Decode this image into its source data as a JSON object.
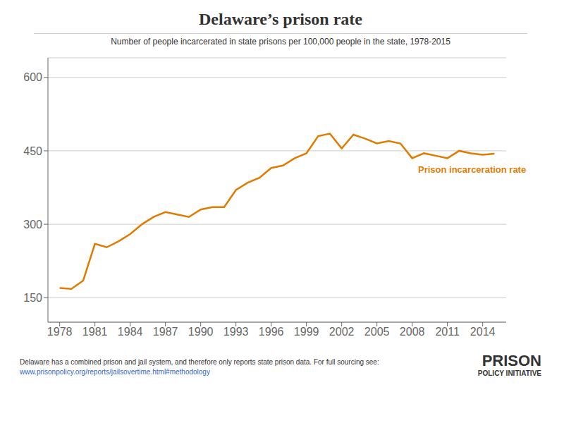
{
  "chart_data": {
    "type": "line",
    "title": "Delaware’s prison rate",
    "subtitle": "Number of people incarcerated in state prisons per 100,000 people in the state, 1978-2015",
    "x": [
      1978,
      1979,
      1980,
      1981,
      1982,
      1983,
      1984,
      1985,
      1986,
      1987,
      1988,
      1989,
      1990,
      1991,
      1992,
      1993,
      1994,
      1995,
      1996,
      1997,
      1998,
      1999,
      2000,
      2001,
      2002,
      2003,
      2004,
      2005,
      2006,
      2007,
      2008,
      2009,
      2010,
      2011,
      2012,
      2013,
      2014,
      2015
    ],
    "values": [
      170,
      168,
      185,
      260,
      253,
      265,
      280,
      300,
      315,
      325,
      320,
      315,
      330,
      335,
      335,
      370,
      385,
      395,
      415,
      420,
      435,
      445,
      480,
      485,
      455,
      483,
      475,
      465,
      470,
      465,
      435,
      445,
      440,
      435,
      450,
      445,
      442,
      444
    ],
    "color": "#e07b00",
    "xlim": [
      1977,
      2016
    ],
    "xticks": [
      1978,
      1981,
      1984,
      1987,
      1990,
      1993,
      1996,
      1999,
      2002,
      2005,
      2008,
      2011,
      2014
    ],
    "ylim": [
      100,
      640
    ],
    "yticks": [
      150,
      300,
      450,
      600
    ],
    "grid": true,
    "annotations": [
      {
        "text": "Prison incarceration rate",
        "x": 2008.5,
        "y": 412
      }
    ],
    "footnote": "Delaware has a combined prison and jail system, and therefore only reports state prison data. For full sourcing see:",
    "footnote_url": "www.prisonpolicy.org/reports/jailsovertime.html#methodology",
    "logo_text1": "PRISON",
    "logo_text2": "POLICY INITIATIVE"
  }
}
